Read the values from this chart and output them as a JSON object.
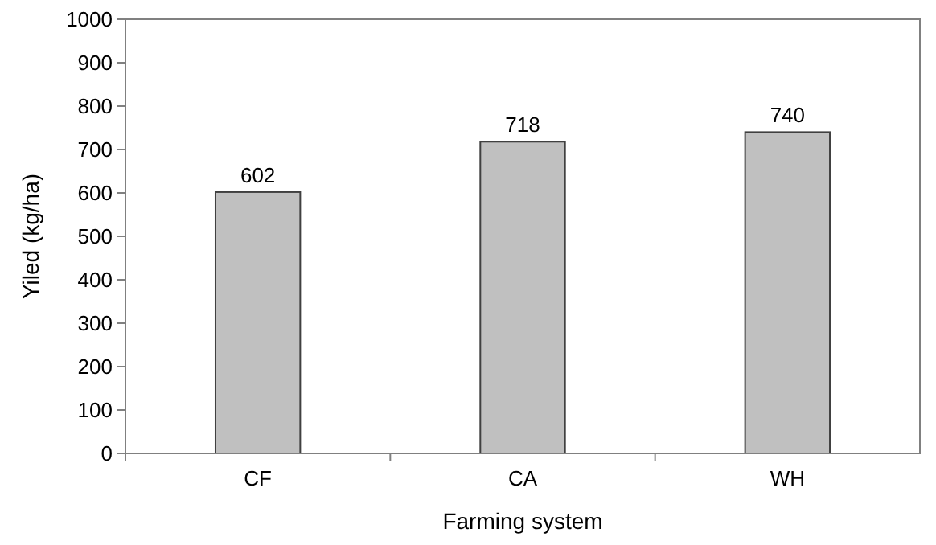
{
  "chart_data": {
    "type": "bar",
    "xlabel": "Farming system",
    "ylabel": "Yiled (kg/ha)",
    "categories": [
      "CF",
      "CA",
      "WH"
    ],
    "values": [
      602,
      718,
      740
    ],
    "color": "#c0c0c0",
    "ylim": [
      0,
      1000
    ],
    "yticks": [
      0,
      100,
      200,
      300,
      400,
      500,
      600,
      700,
      800,
      900,
      1000
    ],
    "data_labels": true,
    "grid": false
  }
}
